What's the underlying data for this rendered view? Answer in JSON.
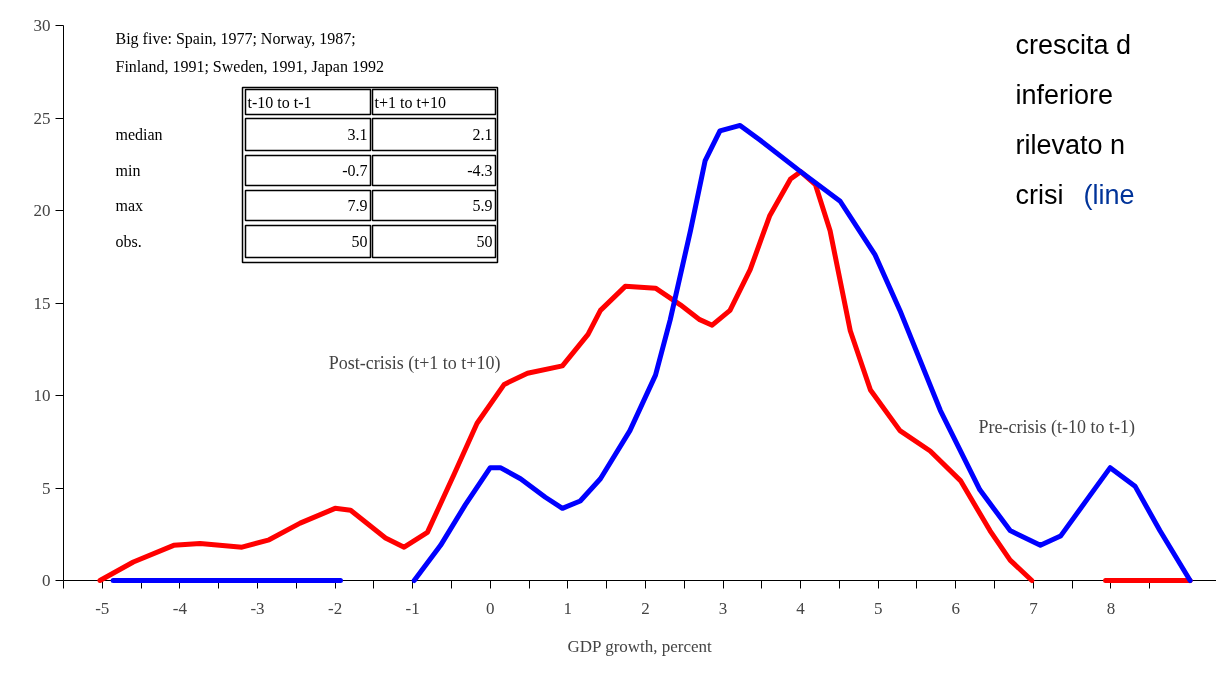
{
  "chart_data": {
    "type": "line",
    "xlabel": "GDP growth, percent",
    "xlim": [
      -5.5,
      9.36
    ],
    "ylim": [
      0,
      30
    ],
    "xticks": [
      {
        "value": -5.5,
        "label": null
      },
      -5,
      {
        "value": -4.5,
        "label": null
      },
      -4,
      {
        "value": -3.5,
        "label": null
      },
      -3,
      {
        "value": -2.5,
        "label": null
      },
      -2,
      {
        "value": -1.5,
        "label": null
      },
      -1,
      {
        "value": -0.5,
        "label": null
      },
      0,
      {
        "value": 0.5,
        "label": null
      },
      1,
      {
        "value": 1.5,
        "label": null
      },
      2,
      {
        "value": 2.5,
        "label": null
      },
      3,
      {
        "value": 3.5,
        "label": null
      },
      4,
      {
        "value": 4.5,
        "label": null
      },
      5,
      {
        "value": 5.5,
        "label": null
      },
      6,
      {
        "value": 6.5,
        "label": null
      },
      7,
      {
        "value": 7.5,
        "label": null
      },
      8,
      {
        "value": 8.5,
        "label": null
      }
    ],
    "yticks": [
      0,
      5,
      10,
      15,
      20,
      25,
      30
    ],
    "grid": false,
    "legend": false,
    "marker": "none",
    "line_style": "solid",
    "series": [
      {
        "name": "Post-crisis (t+1 to t+10)",
        "color": "#ff0000",
        "x": [
          -5.03,
          -4.6,
          -4.08,
          -3.74,
          -3.2,
          -2.85,
          -2.45,
          -2.0,
          -1.8,
          -1.35,
          -1.11,
          -0.81,
          -0.46,
          -0.17,
          0.18,
          0.48,
          0.93,
          1.26,
          1.42,
          1.74,
          2.13,
          2.45,
          2.7,
          2.86,
          3.09,
          3.35,
          3.6,
          3.87,
          4.0,
          4.19,
          4.38,
          4.64,
          4.9,
          5.28,
          5.67,
          6.06,
          6.44,
          6.7,
          6.98,
          7.5,
          7.93,
          9.02
        ],
        "values": [
          0,
          1.0,
          1.9,
          2.0,
          1.8,
          2.2,
          3.1,
          3.9,
          3.8,
          2.3,
          1.8,
          2.6,
          5.8,
          8.5,
          10.6,
          11.2,
          11.6,
          13.3,
          14.6,
          15.9,
          15.8,
          14.9,
          14.1,
          13.8,
          14.6,
          16.8,
          19.7,
          21.7,
          22.1,
          21.4,
          18.9,
          13.5,
          10.3,
          8.1,
          7.0,
          5.4,
          2.7,
          1.1,
          0,
          null,
          0,
          0
        ]
      },
      {
        "name": "Pre-crisis (t-10 to t-1)",
        "color": "#0000ff",
        "x": [
          -4.86,
          -1.93,
          -1.5,
          -0.98,
          -0.64,
          -0.32,
          0,
          0.13,
          0.39,
          0.71,
          0.93,
          1.16,
          1.42,
          1.8,
          2.13,
          2.32,
          2.58,
          2.77,
          2.96,
          3.22,
          3.48,
          4.0,
          4.51,
          4.96,
          5.28,
          5.8,
          6.31,
          6.7,
          7.09,
          7.35,
          7.73,
          7.99,
          8.31,
          8.63,
          9.02
        ],
        "values": [
          0,
          0,
          null,
          0,
          1.9,
          4.1,
          6.1,
          6.1,
          5.5,
          4.5,
          3.9,
          4.3,
          5.5,
          8.1,
          11.1,
          14.1,
          18.9,
          22.7,
          24.3,
          24.6,
          23.8,
          22.1,
          20.5,
          17.6,
          14.6,
          9.2,
          4.9,
          2.7,
          1.9,
          2.4,
          4.6,
          6.1,
          5.1,
          2.7,
          0
        ]
      }
    ],
    "annotations": [
      "Big five: Spain, 1977; Norway, 1987;",
      "Finland, 1991; Sweden, 1991, Japan 1992",
      "t-10 to t-1",
      "t+1 to t+10",
      "median",
      "3.1",
      "2.1",
      "min",
      "-0.7",
      "-4.3",
      "max",
      "7.9",
      "5.9",
      "obs.",
      "50",
      "50",
      "crescita d",
      "inferiore",
      "rilevato n",
      "crisi",
      "(line"
    ]
  }
}
